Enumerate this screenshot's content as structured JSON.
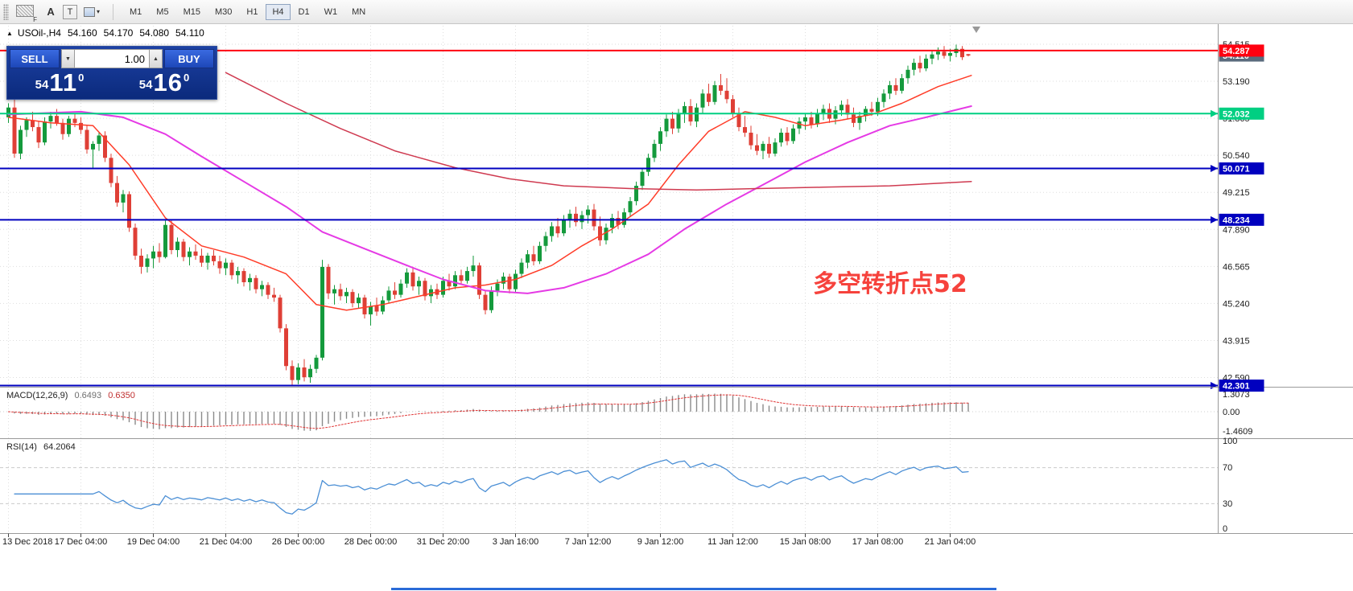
{
  "toolbar": {
    "icons": {
      "pattern_sub": "F",
      "text_a": "A",
      "text_t": "T",
      "caret": "▾"
    },
    "timeframes": [
      "M1",
      "M5",
      "M15",
      "M30",
      "H1",
      "H4",
      "D1",
      "W1",
      "MN"
    ],
    "active_timeframe": "H4"
  },
  "chart": {
    "collapse_icon": "▲",
    "title": "USOil-,H4",
    "ohlc": {
      "open": "54.160",
      "high": "54.170",
      "low": "54.080",
      "close": "54.110"
    },
    "annotation": {
      "text": "多空转折点52",
      "color": "#f6423c"
    }
  },
  "trade_panel": {
    "sell_label": "SELL",
    "buy_label": "BUY",
    "volume": "1.00",
    "spinner_down": "▼",
    "spinner_up": "▲",
    "bid": {
      "small": "54",
      "big": "11",
      "sup": "0",
      "full": "54.110"
    },
    "ask": {
      "small": "54",
      "big": "16",
      "sup": "0",
      "full": "54.160"
    }
  },
  "price_axis": {
    "ticks": [
      "54.515",
      "53.190",
      "51.865",
      "50.540",
      "49.215",
      "47.890",
      "46.565",
      "45.240",
      "43.915",
      "42.590"
    ],
    "badges": [
      {
        "value": "54.110",
        "bg": "#5a6b7d"
      },
      {
        "value": "54.287",
        "bg": "#ff0010"
      },
      {
        "value": "52.032",
        "bg": "#00cf82"
      },
      {
        "value": "50.071",
        "bg": "#0000bf"
      },
      {
        "value": "48.234",
        "bg": "#0000bf"
      },
      {
        "value": "42.301",
        "bg": "#0000bf"
      }
    ]
  },
  "time_axis": {
    "tick_step_candles": 12,
    "labels": [
      "13 Dec 2018",
      "17 Dec 04:00",
      "19 Dec 04:00",
      "21 Dec 04:00",
      "26 Dec 00:00",
      "28 Dec 00:00",
      "31 Dec 20:00",
      "3 Jan 16:00",
      "7 Jan 12:00",
      "9 Jan 12:00",
      "11 Jan 12:00",
      "15 Jan 08:00",
      "17 Jan 08:00",
      "21 Jan 04:00"
    ]
  },
  "indicators": {
    "macd": {
      "name": "MACD(12,26,9)",
      "values": [
        "0.6493",
        "0.6350"
      ],
      "scale": [
        "1.3073",
        "0.00",
        "-1.4609"
      ],
      "histogram_color": "#8a8a8a",
      "signal_color": "#e03535"
    },
    "rsi": {
      "name": "RSI(14)",
      "value": "64.2064",
      "scale": [
        "100",
        "70",
        "30",
        "0"
      ],
      "levels": [
        70,
        30
      ],
      "color": "#4b8fd5"
    }
  },
  "chart_data": {
    "type": "candlestick",
    "symbol": "USOil",
    "timeframe": "H4",
    "price_range": [
      42.3,
      54.52
    ],
    "colors": {
      "up": "#149a3c",
      "down": "#df3f36",
      "grid": "#dedede"
    },
    "candles": [
      [
        51.9,
        52.4,
        51.7,
        52.25
      ],
      [
        52.25,
        52.8,
        50.45,
        50.6
      ],
      [
        50.6,
        51.6,
        50.4,
        51.45
      ],
      [
        51.45,
        51.9,
        51.2,
        51.8
      ],
      [
        51.8,
        52.1,
        51.4,
        51.55
      ],
      [
        51.55,
        51.75,
        50.8,
        51.0
      ],
      [
        51.0,
        51.9,
        50.9,
        51.75
      ],
      [
        51.75,
        52.1,
        51.5,
        51.95
      ],
      [
        51.95,
        52.2,
        51.6,
        51.7
      ],
      [
        51.7,
        51.85,
        51.1,
        51.3
      ],
      [
        51.3,
        51.95,
        51.2,
        51.85
      ],
      [
        51.85,
        52.05,
        51.55,
        51.7
      ],
      [
        51.7,
        51.9,
        51.3,
        51.45
      ],
      [
        51.45,
        51.6,
        50.6,
        50.75
      ],
      [
        50.75,
        51.05,
        50.05,
        50.95
      ],
      [
        50.95,
        51.35,
        50.7,
        51.25
      ],
      [
        51.25,
        51.4,
        50.3,
        50.45
      ],
      [
        50.45,
        50.6,
        49.4,
        49.55
      ],
      [
        49.55,
        49.8,
        48.7,
        48.85
      ],
      [
        48.85,
        49.3,
        48.5,
        49.15
      ],
      [
        49.15,
        49.25,
        47.8,
        47.95
      ],
      [
        47.95,
        48.1,
        46.8,
        46.95
      ],
      [
        46.95,
        47.2,
        46.3,
        46.55
      ],
      [
        46.55,
        47.0,
        46.35,
        46.85
      ],
      [
        46.85,
        47.3,
        46.5,
        47.1
      ],
      [
        47.1,
        47.4,
        46.7,
        46.9
      ],
      [
        46.9,
        48.2,
        46.85,
        48.05
      ],
      [
        48.05,
        48.25,
        47.0,
        47.15
      ],
      [
        47.15,
        47.6,
        46.9,
        47.45
      ],
      [
        47.45,
        47.55,
        46.75,
        46.9
      ],
      [
        46.9,
        47.25,
        46.6,
        47.1
      ],
      [
        47.1,
        47.35,
        46.8,
        46.95
      ],
      [
        46.95,
        47.2,
        46.55,
        46.7
      ],
      [
        46.7,
        47.05,
        46.45,
        46.95
      ],
      [
        46.95,
        47.15,
        46.6,
        46.75
      ],
      [
        46.75,
        46.95,
        46.3,
        46.5
      ],
      [
        46.5,
        46.85,
        46.25,
        46.7
      ],
      [
        46.7,
        46.8,
        46.1,
        46.25
      ],
      [
        46.25,
        46.55,
        45.95,
        46.4
      ],
      [
        46.4,
        46.5,
        45.85,
        46.0
      ],
      [
        46.0,
        46.3,
        45.7,
        46.15
      ],
      [
        46.15,
        46.25,
        45.6,
        45.75
      ],
      [
        45.75,
        46.05,
        45.5,
        45.9
      ],
      [
        45.9,
        46.0,
        45.4,
        45.55
      ],
      [
        45.55,
        45.8,
        45.3,
        45.45
      ],
      [
        45.45,
        45.55,
        44.2,
        44.35
      ],
      [
        44.35,
        44.5,
        42.85,
        43.0
      ],
      [
        43.0,
        43.2,
        42.3,
        42.5
      ],
      [
        42.5,
        43.1,
        42.35,
        42.95
      ],
      [
        42.95,
        43.25,
        42.45,
        42.6
      ],
      [
        42.6,
        43.05,
        42.4,
        42.9
      ],
      [
        42.9,
        43.4,
        42.75,
        43.3
      ],
      [
        43.3,
        46.8,
        43.2,
        46.55
      ],
      [
        46.55,
        46.65,
        45.4,
        45.6
      ],
      [
        45.6,
        45.9,
        45.2,
        45.75
      ],
      [
        45.75,
        45.95,
        45.35,
        45.5
      ],
      [
        45.5,
        45.8,
        45.25,
        45.65
      ],
      [
        45.65,
        45.75,
        45.1,
        45.25
      ],
      [
        45.25,
        45.6,
        45.05,
        45.45
      ],
      [
        45.45,
        45.55,
        44.7,
        44.85
      ],
      [
        44.85,
        45.3,
        44.45,
        45.15
      ],
      [
        45.15,
        45.45,
        44.8,
        44.95
      ],
      [
        44.95,
        45.5,
        44.85,
        45.35
      ],
      [
        45.35,
        45.85,
        45.25,
        45.7
      ],
      [
        45.7,
        46.0,
        45.4,
        45.55
      ],
      [
        45.55,
        46.1,
        45.45,
        45.95
      ],
      [
        45.95,
        46.5,
        45.8,
        46.35
      ],
      [
        46.35,
        46.55,
        45.7,
        45.85
      ],
      [
        45.85,
        46.2,
        45.55,
        46.05
      ],
      [
        46.05,
        46.15,
        45.35,
        45.5
      ],
      [
        45.5,
        45.9,
        45.25,
        45.75
      ],
      [
        45.75,
        45.95,
        45.4,
        45.55
      ],
      [
        45.55,
        46.2,
        45.45,
        46.05
      ],
      [
        46.05,
        46.3,
        45.7,
        45.85
      ],
      [
        45.85,
        46.4,
        45.75,
        46.25
      ],
      [
        46.25,
        46.45,
        45.9,
        46.05
      ],
      [
        46.05,
        46.55,
        45.95,
        46.4
      ],
      [
        46.4,
        46.95,
        46.2,
        46.6
      ],
      [
        46.6,
        46.7,
        45.4,
        45.55
      ],
      [
        45.55,
        45.7,
        44.85,
        45.0
      ],
      [
        45.0,
        45.85,
        44.9,
        45.7
      ],
      [
        45.7,
        46.1,
        45.5,
        45.95
      ],
      [
        45.95,
        46.35,
        45.75,
        46.2
      ],
      [
        46.2,
        46.3,
        45.6,
        45.75
      ],
      [
        45.75,
        46.45,
        45.65,
        46.3
      ],
      [
        46.3,
        46.85,
        46.15,
        46.7
      ],
      [
        46.7,
        47.15,
        46.5,
        47.0
      ],
      [
        47.0,
        47.3,
        46.6,
        46.75
      ],
      [
        46.75,
        47.45,
        46.65,
        47.3
      ],
      [
        47.3,
        47.8,
        47.1,
        47.65
      ],
      [
        47.65,
        48.15,
        47.45,
        48.0
      ],
      [
        48.0,
        48.3,
        47.6,
        47.75
      ],
      [
        47.75,
        48.4,
        47.65,
        48.25
      ],
      [
        48.25,
        48.6,
        47.95,
        48.45
      ],
      [
        48.45,
        48.7,
        48.0,
        48.15
      ],
      [
        48.15,
        48.55,
        47.9,
        48.4
      ],
      [
        48.4,
        48.75,
        48.1,
        48.6
      ],
      [
        48.6,
        48.8,
        47.85,
        48.0
      ],
      [
        48.0,
        48.35,
        47.3,
        47.5
      ],
      [
        47.5,
        48.1,
        47.35,
        47.95
      ],
      [
        47.95,
        48.45,
        47.75,
        48.3
      ],
      [
        48.3,
        48.55,
        47.9,
        48.05
      ],
      [
        48.05,
        48.65,
        47.95,
        48.5
      ],
      [
        48.5,
        49.05,
        48.35,
        48.9
      ],
      [
        48.9,
        49.6,
        48.75,
        49.45
      ],
      [
        49.45,
        50.1,
        49.3,
        49.95
      ],
      [
        49.95,
        50.6,
        49.8,
        50.45
      ],
      [
        50.45,
        51.1,
        50.3,
        50.95
      ],
      [
        50.95,
        51.55,
        50.7,
        51.4
      ],
      [
        51.4,
        52.0,
        51.2,
        51.85
      ],
      [
        51.85,
        52.1,
        51.3,
        51.5
      ],
      [
        51.5,
        52.2,
        51.35,
        52.05
      ],
      [
        52.05,
        52.45,
        51.7,
        52.3
      ],
      [
        52.3,
        52.55,
        51.6,
        51.75
      ],
      [
        51.75,
        52.4,
        51.55,
        52.25
      ],
      [
        52.25,
        52.9,
        52.05,
        52.75
      ],
      [
        52.75,
        53.1,
        52.3,
        52.45
      ],
      [
        52.45,
        53.2,
        52.35,
        53.05
      ],
      [
        53.05,
        53.45,
        52.7,
        52.85
      ],
      [
        52.85,
        53.3,
        52.4,
        52.55
      ],
      [
        52.55,
        52.7,
        51.9,
        52.05
      ],
      [
        52.05,
        52.25,
        51.4,
        51.55
      ],
      [
        51.55,
        51.95,
        51.2,
        51.35
      ],
      [
        51.35,
        51.6,
        50.75,
        50.9
      ],
      [
        50.9,
        51.3,
        50.55,
        50.7
      ],
      [
        50.7,
        51.05,
        50.4,
        50.95
      ],
      [
        50.95,
        51.2,
        50.45,
        50.6
      ],
      [
        50.6,
        51.15,
        50.5,
        51.0
      ],
      [
        51.0,
        51.5,
        50.85,
        51.35
      ],
      [
        51.35,
        51.55,
        50.9,
        51.05
      ],
      [
        51.05,
        51.65,
        50.95,
        51.5
      ],
      [
        51.5,
        51.9,
        51.3,
        51.75
      ],
      [
        51.75,
        52.05,
        51.45,
        51.9
      ],
      [
        51.9,
        52.1,
        51.5,
        51.65
      ],
      [
        51.65,
        52.2,
        51.55,
        52.05
      ],
      [
        52.05,
        52.35,
        51.8,
        52.2
      ],
      [
        52.2,
        52.4,
        51.7,
        51.85
      ],
      [
        51.85,
        52.3,
        51.65,
        52.15
      ],
      [
        52.15,
        52.5,
        51.95,
        52.35
      ],
      [
        52.35,
        52.55,
        51.85,
        52.0
      ],
      [
        52.0,
        52.25,
        51.55,
        51.7
      ],
      [
        51.7,
        52.1,
        51.45,
        51.95
      ],
      [
        51.95,
        52.3,
        51.75,
        52.2
      ],
      [
        52.2,
        52.45,
        51.95,
        52.1
      ],
      [
        52.1,
        52.6,
        51.95,
        52.45
      ],
      [
        52.45,
        52.9,
        52.25,
        52.75
      ],
      [
        52.75,
        53.2,
        52.55,
        53.05
      ],
      [
        53.05,
        53.3,
        52.7,
        52.85
      ],
      [
        52.85,
        53.45,
        52.75,
        53.3
      ],
      [
        53.3,
        53.75,
        53.1,
        53.6
      ],
      [
        53.6,
        54.0,
        53.4,
        53.85
      ],
      [
        53.85,
        54.1,
        53.5,
        53.65
      ],
      [
        53.65,
        54.15,
        53.55,
        54.0
      ],
      [
        54.0,
        54.3,
        53.8,
        54.15
      ],
      [
        54.15,
        54.4,
        53.95,
        54.25
      ],
      [
        54.25,
        54.45,
        54.0,
        54.1
      ],
      [
        54.1,
        54.35,
        53.9,
        54.2
      ],
      [
        54.2,
        54.5,
        54.05,
        54.35
      ],
      [
        54.35,
        54.45,
        53.95,
        54.05
      ],
      [
        54.16,
        54.17,
        54.08,
        54.11
      ]
    ],
    "overlays": [
      {
        "name": "ma-fast",
        "color": "#ff3c28",
        "width": 1.5,
        "points": [
          [
            0,
            51.9
          ],
          [
            7,
            51.7
          ],
          [
            14,
            51.6
          ],
          [
            20,
            50.2
          ],
          [
            26,
            48.3
          ],
          [
            32,
            47.3
          ],
          [
            39,
            46.9
          ],
          [
            46,
            46.3
          ],
          [
            51,
            45.2
          ],
          [
            56,
            45.0
          ],
          [
            62,
            45.2
          ],
          [
            68,
            45.5
          ],
          [
            74,
            45.8
          ],
          [
            79,
            45.9
          ],
          [
            84,
            46.1
          ],
          [
            90,
            46.6
          ],
          [
            95,
            47.3
          ],
          [
            100,
            47.9
          ],
          [
            106,
            48.8
          ],
          [
            111,
            50.2
          ],
          [
            116,
            51.4
          ],
          [
            122,
            52.1
          ],
          [
            127,
            51.9
          ],
          [
            132,
            51.6
          ],
          [
            138,
            51.8
          ],
          [
            143,
            52.0
          ],
          [
            148,
            52.4
          ],
          [
            154,
            53.0
          ],
          [
            159.5,
            53.4
          ]
        ]
      },
      {
        "name": "ma-slow",
        "color": "#e53ae5",
        "width": 2,
        "points": [
          [
            0,
            52.0
          ],
          [
            12,
            52.1
          ],
          [
            19,
            51.9
          ],
          [
            26,
            51.3
          ],
          [
            32,
            50.5
          ],
          [
            39,
            49.6
          ],
          [
            46,
            48.7
          ],
          [
            52,
            47.8
          ],
          [
            59,
            47.2
          ],
          [
            66,
            46.6
          ],
          [
            72,
            46.1
          ],
          [
            79,
            45.7
          ],
          [
            86,
            45.6
          ],
          [
            92,
            45.8
          ],
          [
            99,
            46.3
          ],
          [
            106,
            47.0
          ],
          [
            112,
            47.9
          ],
          [
            119,
            48.8
          ],
          [
            126,
            49.6
          ],
          [
            132,
            50.3
          ],
          [
            139,
            51.0
          ],
          [
            146,
            51.6
          ],
          [
            152,
            51.9
          ],
          [
            159.5,
            52.3
          ]
        ]
      },
      {
        "name": "ma-long",
        "color": "#cf3a50",
        "width": 1.5,
        "points": [
          [
            36,
            53.5
          ],
          [
            46,
            52.4
          ],
          [
            55,
            51.5
          ],
          [
            64,
            50.7
          ],
          [
            74,
            50.1
          ],
          [
            83,
            49.7
          ],
          [
            92,
            49.45
          ],
          [
            103,
            49.35
          ],
          [
            114,
            49.3
          ],
          [
            124,
            49.35
          ],
          [
            135,
            49.4
          ],
          [
            146,
            49.45
          ],
          [
            159.5,
            49.6
          ]
        ]
      }
    ],
    "hlines": [
      {
        "price": 54.287,
        "color": "#ff0010",
        "arrow": false
      },
      {
        "price": 52.032,
        "color": "#00cf82",
        "arrow": true
      },
      {
        "price": 50.071,
        "color": "#0000bf",
        "arrow": true
      },
      {
        "price": 48.234,
        "color": "#0000bf",
        "arrow": true
      },
      {
        "price": 42.301,
        "color": "#0000bf",
        "arrow": true
      }
    ]
  }
}
